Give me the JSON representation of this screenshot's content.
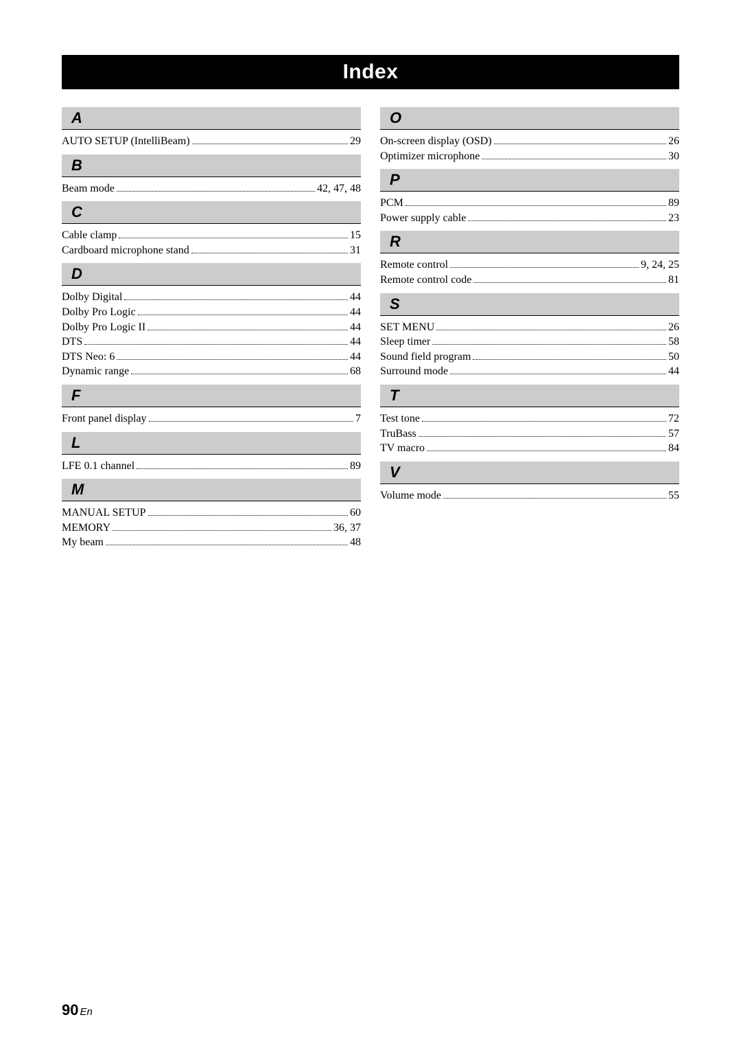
{
  "title": "Index",
  "page_number": "90",
  "page_lang": "En",
  "colors": {
    "section_bg": "#cccccc",
    "title_bg": "#000000",
    "title_fg": "#ffffff",
    "rule": "#000000"
  },
  "left": [
    {
      "letter": "A",
      "entries": [
        {
          "term": "AUTO SETUP (IntelliBeam)",
          "pages": "29"
        }
      ]
    },
    {
      "letter": "B",
      "entries": [
        {
          "term": "Beam mode",
          "pages": "42, 47, 48"
        }
      ]
    },
    {
      "letter": "C",
      "entries": [
        {
          "term": "Cable clamp",
          "pages": "15"
        },
        {
          "term": "Cardboard microphone stand",
          "pages": "31"
        }
      ]
    },
    {
      "letter": "D",
      "entries": [
        {
          "term": "Dolby Digital",
          "pages": "44"
        },
        {
          "term": "Dolby Pro Logic",
          "pages": "44"
        },
        {
          "term": "Dolby Pro Logic II",
          "pages": "44"
        },
        {
          "term": "DTS",
          "pages": "44"
        },
        {
          "term": "DTS Neo: 6",
          "pages": "44"
        },
        {
          "term": "Dynamic range",
          "pages": "68"
        }
      ]
    },
    {
      "letter": "F",
      "entries": [
        {
          "term": "Front panel display",
          "pages": "7"
        }
      ]
    },
    {
      "letter": "L",
      "entries": [
        {
          "term": "LFE 0.1 channel",
          "pages": "89"
        }
      ]
    },
    {
      "letter": "M",
      "entries": [
        {
          "term": "MANUAL SETUP",
          "pages": "60"
        },
        {
          "term": "MEMORY",
          "pages": "36, 37"
        },
        {
          "term": "My beam",
          "pages": "48"
        }
      ]
    }
  ],
  "right": [
    {
      "letter": "O",
      "entries": [
        {
          "term": "On-screen display (OSD)",
          "pages": "26"
        },
        {
          "term": "Optimizer microphone",
          "pages": "30"
        }
      ]
    },
    {
      "letter": "P",
      "entries": [
        {
          "term": "PCM",
          "pages": "89"
        },
        {
          "term": "Power supply cable",
          "pages": "23"
        }
      ]
    },
    {
      "letter": "R",
      "entries": [
        {
          "term": "Remote control",
          "pages": "9, 24, 25"
        },
        {
          "term": "Remote control code",
          "pages": "81"
        }
      ]
    },
    {
      "letter": "S",
      "entries": [
        {
          "term": "SET MENU",
          "pages": "26"
        },
        {
          "term": "Sleep timer",
          "pages": "58"
        },
        {
          "term": "Sound field program",
          "pages": "50"
        },
        {
          "term": "Surround mode",
          "pages": "44"
        }
      ]
    },
    {
      "letter": "T",
      "entries": [
        {
          "term": "Test tone",
          "pages": "72"
        },
        {
          "term": "TruBass",
          "pages": "57"
        },
        {
          "term": "TV macro",
          "pages": "84"
        }
      ]
    },
    {
      "letter": "V",
      "entries": [
        {
          "term": "Volume mode",
          "pages": "55"
        }
      ]
    }
  ]
}
